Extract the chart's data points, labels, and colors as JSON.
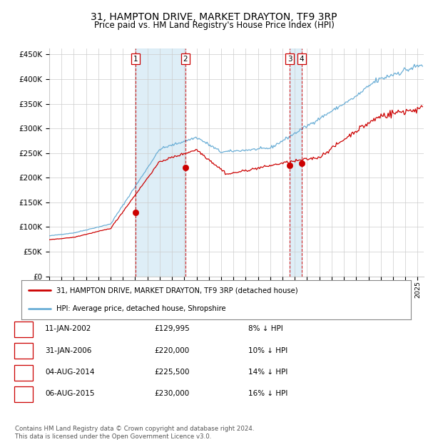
{
  "title": "31, HAMPTON DRIVE, MARKET DRAYTON, TF9 3RP",
  "subtitle": "Price paid vs. HM Land Registry's House Price Index (HPI)",
  "title_fontsize": 10,
  "subtitle_fontsize": 8.5,
  "yticks": [
    0,
    50000,
    100000,
    150000,
    200000,
    250000,
    300000,
    350000,
    400000,
    450000
  ],
  "ytick_labels": [
    "£0",
    "£50K",
    "£100K",
    "£150K",
    "£200K",
    "£250K",
    "£300K",
    "£350K",
    "£400K",
    "£450K"
  ],
  "ylim": [
    0,
    462000
  ],
  "xlim_start": 1995.0,
  "xlim_end": 2025.5,
  "xticks": [
    1995,
    1996,
    1997,
    1998,
    1999,
    2000,
    2001,
    2002,
    2003,
    2004,
    2005,
    2006,
    2007,
    2008,
    2009,
    2010,
    2011,
    2012,
    2013,
    2014,
    2015,
    2016,
    2017,
    2018,
    2019,
    2020,
    2021,
    2022,
    2023,
    2024,
    2025
  ],
  "hpi_color": "#6aaed6",
  "price_color": "#cc0000",
  "marker_color": "#cc0000",
  "vline_color": "#cc0000",
  "shade_color": "#d6eaf5",
  "grid_color": "#cccccc",
  "bg_color": "#ffffff",
  "transactions": [
    {
      "date": 2002.04,
      "price": 129995,
      "label": "1"
    },
    {
      "date": 2006.08,
      "price": 220000,
      "label": "2"
    },
    {
      "date": 2014.58,
      "price": 225500,
      "label": "3"
    },
    {
      "date": 2015.58,
      "price": 230000,
      "label": "4"
    }
  ],
  "shade_ranges": [
    [
      2002.04,
      2006.08
    ],
    [
      2014.58,
      2015.58
    ]
  ],
  "table_rows": [
    {
      "num": "1",
      "date": "11-JAN-2002",
      "price": "£129,995",
      "hpi": "8% ↓ HPI"
    },
    {
      "num": "2",
      "date": "31-JAN-2006",
      "price": "£220,000",
      "hpi": "10% ↓ HPI"
    },
    {
      "num": "3",
      "date": "04-AUG-2014",
      "price": "£225,500",
      "hpi": "14% ↓ HPI"
    },
    {
      "num": "4",
      "date": "06-AUG-2015",
      "price": "£230,000",
      "hpi": "16% ↓ HPI"
    }
  ],
  "legend_line1": "31, HAMPTON DRIVE, MARKET DRAYTON, TF9 3RP (detached house)",
  "legend_line2": "HPI: Average price, detached house, Shropshire",
  "footnote": "Contains HM Land Registry data © Crown copyright and database right 2024.\nThis data is licensed under the Open Government Licence v3.0."
}
